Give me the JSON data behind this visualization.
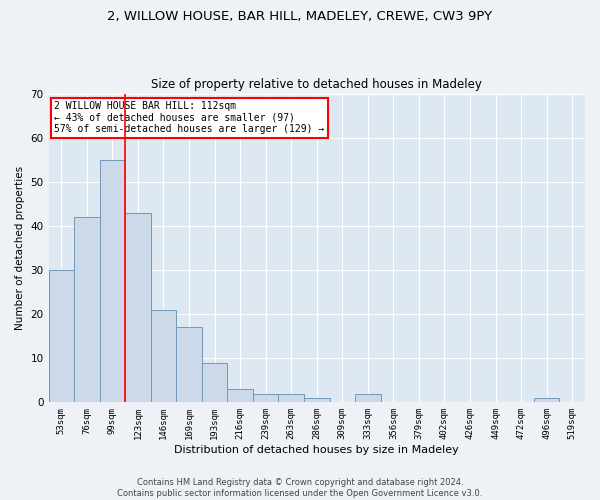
{
  "title1": "2, WILLOW HOUSE, BAR HILL, MADELEY, CREWE, CW3 9PY",
  "title2": "Size of property relative to detached houses in Madeley",
  "xlabel": "Distribution of detached houses by size in Madeley",
  "ylabel": "Number of detached properties",
  "bar_labels": [
    "53sqm",
    "76sqm",
    "99sqm",
    "123sqm",
    "146sqm",
    "169sqm",
    "193sqm",
    "216sqm",
    "239sqm",
    "263sqm",
    "286sqm",
    "309sqm",
    "333sqm",
    "356sqm",
    "379sqm",
    "402sqm",
    "426sqm",
    "449sqm",
    "472sqm",
    "496sqm",
    "519sqm"
  ],
  "bar_values": [
    30,
    42,
    55,
    43,
    21,
    17,
    9,
    3,
    2,
    2,
    1,
    0,
    2,
    0,
    0,
    0,
    0,
    0,
    0,
    1,
    0
  ],
  "bar_color": "#ccd9e8",
  "bar_edge_color": "#7098b8",
  "ylim": [
    0,
    70
  ],
  "yticks": [
    0,
    10,
    20,
    30,
    40,
    50,
    60,
    70
  ],
  "red_line_index": 2,
  "annotation_line1": "2 WILLOW HOUSE BAR HILL: 112sqm",
  "annotation_line2": "← 43% of detached houses are smaller (97)",
  "annotation_line3": "57% of semi-detached houses are larger (129) →",
  "footer1": "Contains HM Land Registry data © Crown copyright and database right 2024.",
  "footer2": "Contains public sector information licensed under the Open Government Licence v3.0.",
  "background_color": "#eef2f6",
  "plot_bg_color": "#dde8f2",
  "grid_color": "#ffffff",
  "title1_fontsize": 9.5,
  "title2_fontsize": 8.5,
  "xlabel_fontsize": 8,
  "ylabel_fontsize": 7.5,
  "footer_fontsize": 6,
  "annot_fontsize": 7
}
